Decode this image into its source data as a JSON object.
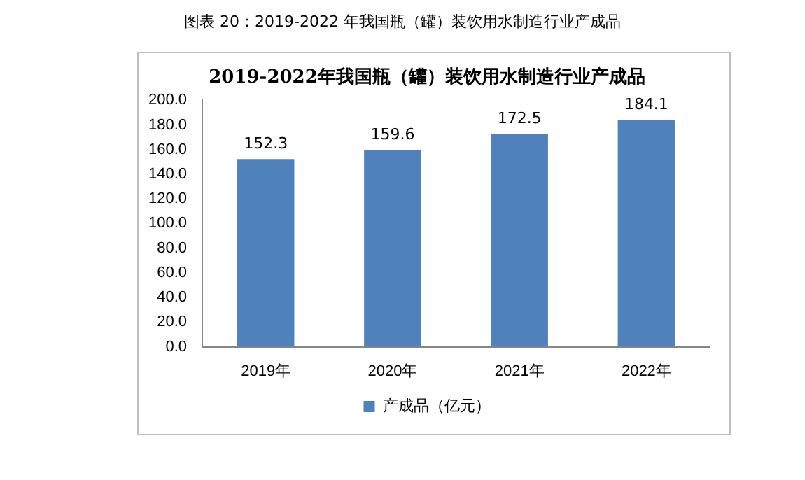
{
  "chart_data": {
    "type": "bar",
    "title": "2019-2022年我国瓶（罐）装饮用水制造行业产成品",
    "annotations": [
      "图表 20：2019-2022 年我国瓶（罐）装饮用水制造行业产成品"
    ],
    "categories": [
      "2019年",
      "2020年",
      "2021年",
      "2022年"
    ],
    "series": [
      {
        "name": "产成品（亿元）",
        "color": "#4f81bd",
        "values": [
          152.3,
          159.6,
          172.5,
          184.1
        ]
      }
    ],
    "ylim": [
      0,
      200
    ],
    "yticks": [
      {
        "value": 0,
        "label": "0.0"
      },
      {
        "value": 20,
        "label": "20.0"
      },
      {
        "value": 40,
        "label": "40.0"
      },
      {
        "value": 60,
        "label": "60.0"
      },
      {
        "value": 80,
        "label": "80.0"
      },
      {
        "value": 100,
        "label": "100.0"
      },
      {
        "value": 120,
        "label": "120.0"
      },
      {
        "value": 140,
        "label": "140.0"
      },
      {
        "value": 160,
        "label": "160.0"
      },
      {
        "value": 180,
        "label": "180.0"
      },
      {
        "value": 200,
        "label": "200.0"
      }
    ],
    "grid": false,
    "legend": "bottom",
    "data_labels": true
  }
}
